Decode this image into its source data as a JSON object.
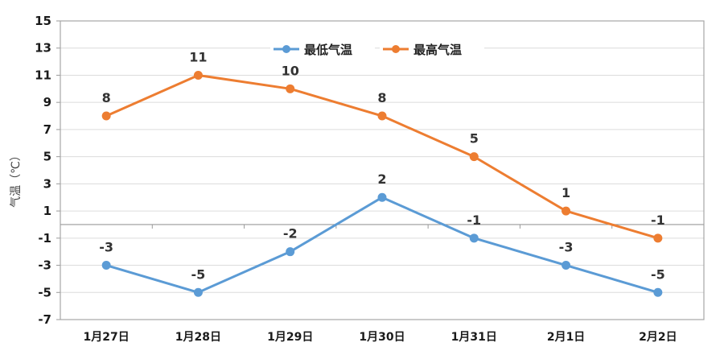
{
  "chart_data": {
    "type": "line",
    "title": "",
    "xlabel": "",
    "ylabel": "气温（℃）",
    "categories": [
      "1月27日",
      "1月28日",
      "1月29日",
      "1月30日",
      "1月31日",
      "2月1日",
      "2月2日"
    ],
    "series": [
      {
        "name": "最低气温",
        "color": "#5b9bd5",
        "values": [
          -3,
          -5,
          -2,
          2,
          -1,
          -3,
          -5
        ]
      },
      {
        "name": "最高气温",
        "color": "#ed7d31",
        "values": [
          8,
          11,
          10,
          8,
          5,
          1,
          -1
        ]
      }
    ],
    "ylim": [
      -7,
      15
    ],
    "yticks": [
      15,
      13,
      11,
      9,
      7,
      5,
      3,
      1,
      -1,
      -3,
      -5,
      -7
    ],
    "grid": true,
    "legend_position": "top-center",
    "data_labels": true
  }
}
